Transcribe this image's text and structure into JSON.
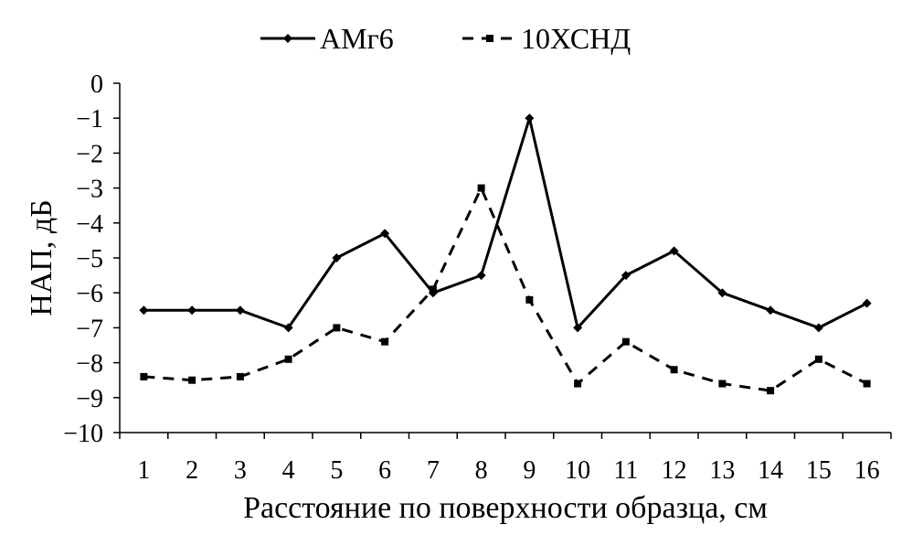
{
  "chart_data": {
    "type": "line",
    "title": "",
    "xlabel": "Расстояние по поверхности образца, см",
    "ylabel": "НАП, дБ",
    "categories": [
      "1",
      "2",
      "3",
      "4",
      "5",
      "6",
      "7",
      "8",
      "9",
      "10",
      "11",
      "12",
      "13",
      "14",
      "15",
      "16"
    ],
    "ylim": [
      -10,
      0
    ],
    "yticks": [
      "0",
      "−1",
      "−2",
      "−3",
      "−4",
      "−5",
      "−6",
      "−7",
      "−8",
      "−9",
      "−10"
    ],
    "grid": false,
    "legend_position": "top-center",
    "series": [
      {
        "name": "АМг6",
        "line_style": "solid",
        "marker": "diamond",
        "color": "#000000",
        "values": [
          -6.5,
          -6.5,
          -6.5,
          -7.0,
          -5.0,
          -4.3,
          -6.0,
          -5.5,
          -1.0,
          -7.0,
          -5.5,
          -4.8,
          -6.0,
          -6.5,
          -7.0,
          -6.3
        ]
      },
      {
        "name": "10ХСНД",
        "line_style": "dashed",
        "marker": "square",
        "color": "#000000",
        "values": [
          -8.4,
          -8.5,
          -8.4,
          -7.9,
          -7.0,
          -7.4,
          -5.9,
          -3.0,
          -6.2,
          -8.6,
          -7.4,
          -8.2,
          -8.6,
          -8.8,
          -7.9,
          -8.6
        ]
      }
    ]
  }
}
